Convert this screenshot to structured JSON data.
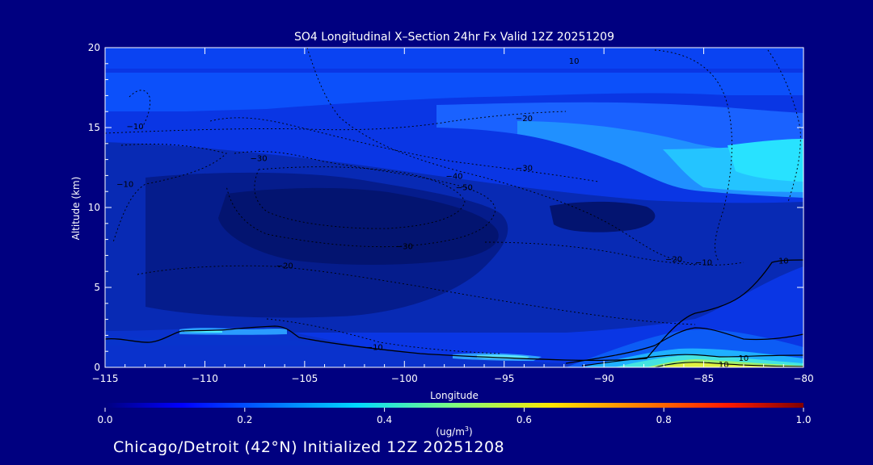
{
  "chart_data": {
    "type": "heatmap",
    "title": "SO4 Longitudinal X–Section 24hr  Fx Valid 12Z 20251209",
    "xlabel": "Longitude",
    "ylabel": "Altitude (km)",
    "xlim": [
      -115,
      -80
    ],
    "ylim": [
      0,
      20
    ],
    "x_ticks": [
      -115,
      -110,
      -105,
      -100,
      -95,
      -90,
      -85,
      -80
    ],
    "x_tick_labels": [
      "−115",
      "−110",
      "−105",
      "−100",
      "−95",
      "−90",
      "−85",
      "−80"
    ],
    "y_ticks": [
      0,
      5,
      10,
      15,
      20
    ],
    "y_tick_labels": [
      "0",
      "5",
      "10",
      "15",
      "20"
    ],
    "colorbar": {
      "min": 0.0,
      "max": 1.0,
      "ticks": [
        0.0,
        0.2,
        0.4,
        0.6,
        0.8,
        1.0
      ],
      "tick_labels": [
        "0.0",
        "0.2",
        "0.4",
        "0.6",
        "0.8",
        "1.0"
      ],
      "unit_label": "(ug/m",
      "unit_sup": "3",
      "unit_close": ")",
      "colormap": "jet"
    },
    "contour_label_annotations": [
      {
        "text": "10",
        "x": -91.5,
        "y": 19.2
      },
      {
        "text": "−20",
        "x": -94.0,
        "y": 15.6
      },
      {
        "text": "−10",
        "x": -113.5,
        "y": 15.1
      },
      {
        "text": "−30",
        "x": -107.3,
        "y": 13.1
      },
      {
        "text": "−30",
        "x": -94.0,
        "y": 12.5
      },
      {
        "text": "−40",
        "x": -97.5,
        "y": 12.0
      },
      {
        "text": "−50",
        "x": -97.0,
        "y": 11.3
      },
      {
        "text": "−10",
        "x": -114.0,
        "y": 11.5
      },
      {
        "text": "−30",
        "x": -100.0,
        "y": 7.6
      },
      {
        "text": "−20",
        "x": -86.5,
        "y": 6.8
      },
      {
        "text": "−10",
        "x": -85.0,
        "y": 6.6
      },
      {
        "text": "10",
        "x": -81.0,
        "y": 6.7
      },
      {
        "text": "−20",
        "x": -106.0,
        "y": 6.4
      },
      {
        "text": "−10",
        "x": -101.5,
        "y": 1.3
      },
      {
        "text": "10",
        "x": -83.0,
        "y": 0.6
      },
      {
        "text": "10",
        "x": -84.0,
        "y": 0.2
      }
    ]
  },
  "footer": {
    "caption": "Chicago/Detroit (42°N) Initialized 12Z 20251208"
  },
  "colors": {
    "background": "#000080",
    "text": "#ffffff",
    "contour": "#000000"
  }
}
